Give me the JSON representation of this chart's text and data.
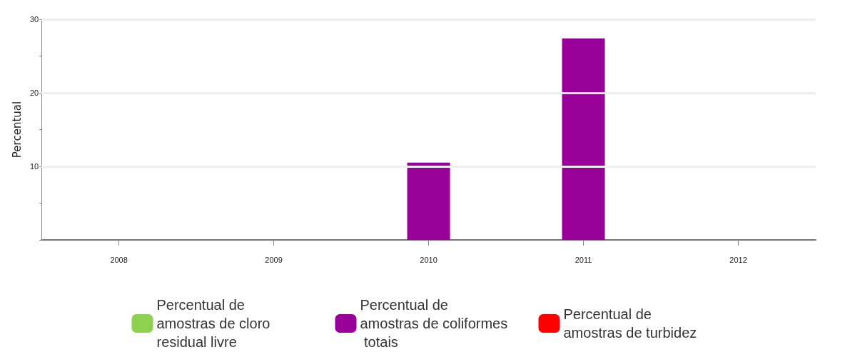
{
  "chart_data": {
    "type": "bar",
    "ylabel": "Percentual",
    "categories": [
      "2008",
      "2009",
      "2010",
      "2011",
      "2012"
    ],
    "series": [
      {
        "name": "Percentual de amostras de cloro residual livre",
        "color": "#8ed14e",
        "values": [
          0,
          0,
          0,
          0,
          0
        ]
      },
      {
        "name": "Percentual de amostras de coliformes totais",
        "color": "#990099",
        "values": [
          0,
          0,
          10.5,
          27.4,
          0
        ]
      },
      {
        "name": "Percentual de amostras de turbidez",
        "color": "#ff0000",
        "values": [
          0,
          0,
          0,
          0,
          0
        ]
      }
    ],
    "ylim": [
      0,
      30
    ],
    "yticks": [
      {
        "value": 0,
        "label": null
      },
      {
        "value": 5,
        "label": null
      },
      10,
      {
        "value": 15,
        "label": null
      },
      20,
      {
        "value": 25,
        "label": null
      },
      30
    ],
    "grid": "y",
    "legend": "bottom"
  }
}
